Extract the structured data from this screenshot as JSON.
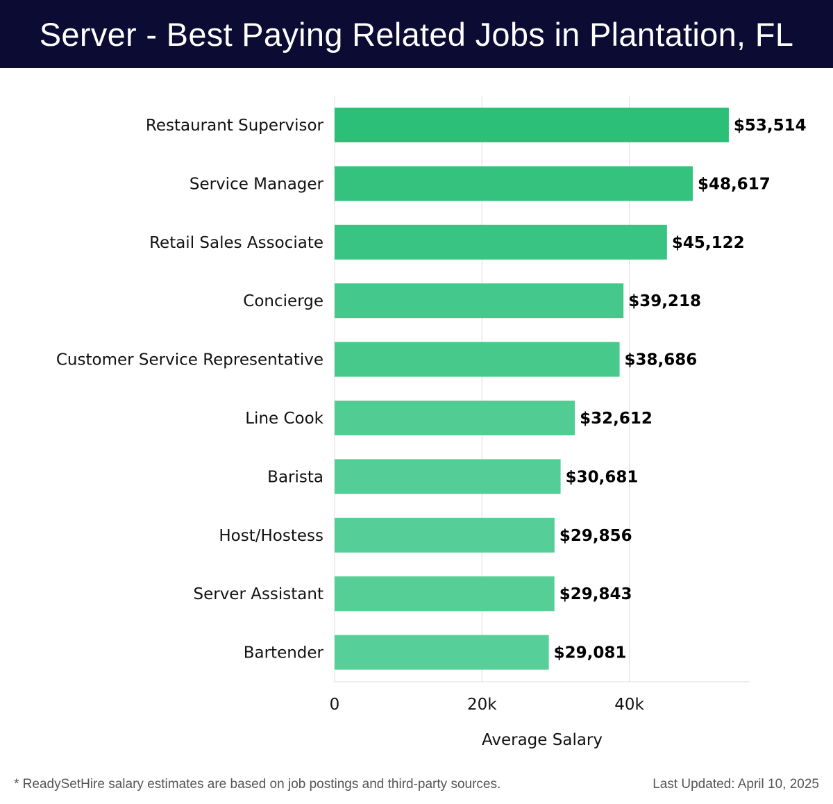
{
  "header": {
    "title": "Server - Best Paying Related Jobs in Plantation, FL"
  },
  "chart_data": {
    "type": "bar",
    "orientation": "horizontal",
    "title": "Server - Best Paying Related Jobs in Plantation, FL",
    "categories": [
      "Restaurant Supervisor",
      "Service Manager",
      "Retail Sales Associate",
      "Concierge",
      "Customer Service Representative",
      "Line Cook",
      "Barista",
      "Host/Hostess",
      "Server Assistant",
      "Bartender"
    ],
    "values": [
      53514,
      48617,
      45122,
      39218,
      38686,
      32612,
      30681,
      29856,
      29843,
      29081
    ],
    "value_labels": [
      "$53,514",
      "$48,617",
      "$45,122",
      "$39,218",
      "$38,686",
      "$32,612",
      "$30,681",
      "$29,856",
      "$29,843",
      "$29,081"
    ],
    "xlabel": "Average Salary",
    "ylabel": "",
    "xlim": [
      0,
      56000
    ],
    "xticks": [
      0,
      20000,
      40000
    ],
    "xtick_labels": [
      "0",
      "20k",
      "40k"
    ],
    "grid": true,
    "colors": {
      "bar_high": "#2bbf78",
      "bar_low": "#57cf98",
      "grid": "#dddddd",
      "header_bg": "#0b0b33"
    }
  },
  "footer": {
    "note": "* ReadySetHire salary estimates are based on job postings and third-party sources.",
    "updated": "Last Updated: April 10, 2025"
  }
}
